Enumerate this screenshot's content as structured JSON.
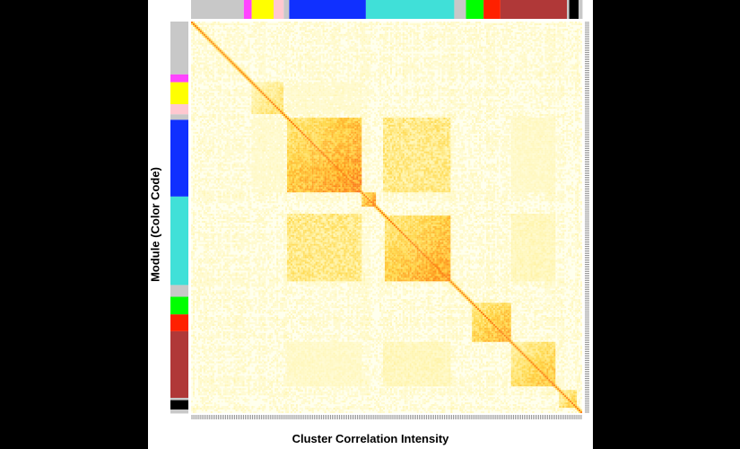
{
  "chart_data": {
    "type": "heatmap",
    "title": "",
    "xlabel": "Cluster Correlation Intensity",
    "ylabel": "Module (Color Code)",
    "grid": false,
    "legend": "none",
    "color_scale": [
      "#ffffee",
      "#fff5b0",
      "#ffd84a",
      "#ffa020",
      "#f86010",
      "#e02000"
    ],
    "modules": [
      {
        "color": "#c8c8c8",
        "fraction": 0.135
      },
      {
        "color": "#ff44ff",
        "fraction": 0.02
      },
      {
        "color": "#ffff00",
        "fraction": 0.056
      },
      {
        "color": "#ffc8d0",
        "fraction": 0.026
      },
      {
        "color": "#c8c8c8",
        "fraction": 0.014
      },
      {
        "color": "#1030ff",
        "fraction": 0.196
      },
      {
        "color": "#40e0d8",
        "fraction": 0.226
      },
      {
        "color": "#c8c8c8",
        "fraction": 0.03
      },
      {
        "color": "#00ff00",
        "fraction": 0.045
      },
      {
        "color": "#ff2000",
        "fraction": 0.043
      },
      {
        "color": "#b03838",
        "fraction": 0.17
      },
      {
        "color": "#c8c8c8",
        "fraction": 0.006
      },
      {
        "color": "#000000",
        "fraction": 0.024
      },
      {
        "color": "#c8c8c8",
        "fraction": 0.01
      }
    ],
    "blocks": [
      {
        "start": 0.155,
        "end": 0.235,
        "intensity": 0.45
      },
      {
        "start": 0.246,
        "end": 0.438,
        "intensity": 0.8
      },
      {
        "start": 0.438,
        "end": 0.475,
        "intensity": 0.85
      },
      {
        "start": 0.495,
        "end": 0.665,
        "intensity": 0.75
      },
      {
        "start": 0.72,
        "end": 0.82,
        "intensity": 0.7
      },
      {
        "start": 0.82,
        "end": 0.93,
        "intensity": 0.6
      },
      {
        "start": 0.94,
        "end": 0.985,
        "intensity": 0.55
      }
    ],
    "off_diagonal": [
      {
        "rows": [
          0.246,
          0.438
        ],
        "cols": [
          0.49,
          0.665
        ],
        "intensity": 0.35
      },
      {
        "rows": [
          0.49,
          0.665
        ],
        "cols": [
          0.246,
          0.438
        ],
        "intensity": 0.35
      },
      {
        "rows": [
          0.246,
          0.438
        ],
        "cols": [
          0.82,
          0.93
        ],
        "intensity": 0.15
      },
      {
        "rows": [
          0.82,
          0.93
        ],
        "cols": [
          0.246,
          0.438
        ],
        "intensity": 0.15
      },
      {
        "rows": [
          0.49,
          0.665
        ],
        "cols": [
          0.82,
          0.93
        ],
        "intensity": 0.2
      },
      {
        "rows": [
          0.82,
          0.93
        ],
        "cols": [
          0.49,
          0.665
        ],
        "intensity": 0.2
      },
      {
        "rows": [
          0.155,
          0.235
        ],
        "cols": [
          0.246,
          0.438
        ],
        "intensity": 0.12
      },
      {
        "rows": [
          0.246,
          0.438
        ],
        "cols": [
          0.155,
          0.235
        ],
        "intensity": 0.12
      }
    ],
    "gene_count": 220
  }
}
